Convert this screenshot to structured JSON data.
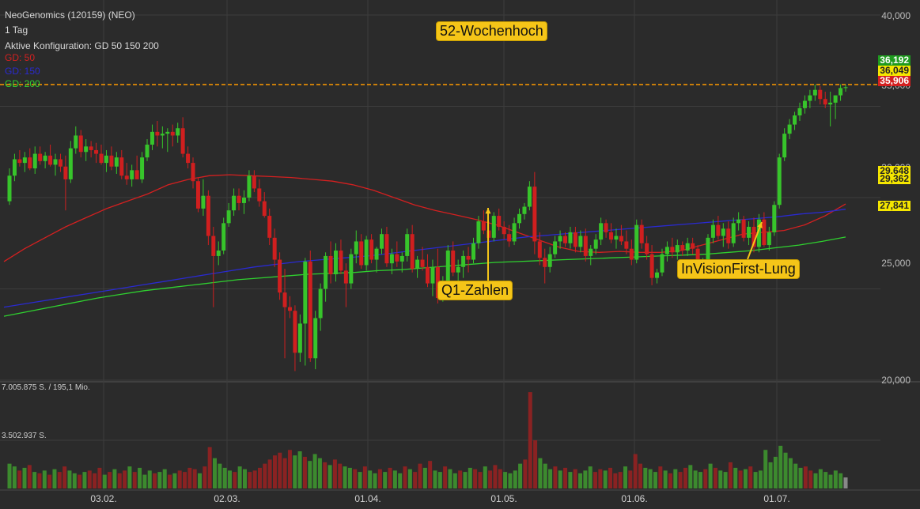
{
  "header": {
    "title": "NeoGenomics (120159) (NEO)",
    "interval": "1 Tag",
    "config": "Aktive Konfiguration: GD 50 150 200"
  },
  "legend": [
    {
      "label": "GD: 50",
      "color": "#d42020"
    },
    {
      "label": "GD: 150",
      "color": "#2a2ad0"
    },
    {
      "label": "GD: 200",
      "color": "#2fd12f"
    }
  ],
  "price_axis": {
    "ticks": [
      "40,000",
      "35,000",
      "30,000",
      "25,000",
      "20,000"
    ]
  },
  "volume_axis": {
    "labels": [
      "7.005.875 S. / 195,1 Mio.",
      "3.502.937 S."
    ]
  },
  "x_axis": {
    "labels": [
      "03.02.",
      "02.03.",
      "01.04.",
      "01.05.",
      "01.06.",
      "01.07."
    ]
  },
  "price_tags": [
    {
      "value": "36,192",
      "bg": "#1f9a1f",
      "fg": "#ffffff"
    },
    {
      "value": "36,049",
      "bg": "#f5e600",
      "fg": "#222222"
    },
    {
      "value": "35,906",
      "bg": "#d42020",
      "fg": "#ffffff"
    },
    {
      "value": "29,648",
      "bg": "#f5e600",
      "fg": "#222222"
    },
    {
      "value": "29,362",
      "bg": "#f5e600",
      "fg": "#222222"
    },
    {
      "value": "27,841",
      "bg": "#f5e600",
      "fg": "#222222"
    }
  ],
  "annotations": [
    {
      "text": "52-Wochenhoch"
    },
    {
      "text": "Q1-Zahlen"
    },
    {
      "text": "InVisionFirst-Lung"
    }
  ],
  "chart_data": {
    "type": "candlestick",
    "price_range": [
      20,
      40
    ],
    "high_52w": 36.192,
    "moving_averages": [
      {
        "name": "GD: 50",
        "color": "#d42020",
        "end_value": 29.648,
        "values": [
          26.5,
          27.2,
          27.8,
          28.4,
          28.9,
          29.4,
          29.8,
          30.2,
          30.7,
          31.0,
          31.2,
          31.25,
          31.2,
          31.15,
          31.1,
          31.0,
          30.9,
          30.7,
          30.4,
          30.0,
          29.6,
          29.3,
          29.05,
          28.8,
          28.5,
          28.1,
          27.7,
          27.3,
          27.05,
          27.0,
          27.05,
          27.0,
          27.0,
          27.1,
          27.4,
          27.7,
          28.0,
          28.1,
          28.2,
          28.5,
          29.0,
          29.648
        ]
      },
      {
        "name": "GD: 150",
        "color": "#2a2ad0",
        "end_value": 29.362,
        "values": [
          24.0,
          24.2,
          24.4,
          24.6,
          24.8,
          25.0,
          25.2,
          25.4,
          25.6,
          25.8,
          26.0,
          26.2,
          26.35,
          26.5,
          26.6,
          26.7,
          26.8,
          26.95,
          27.1,
          27.25,
          27.4,
          27.55,
          27.7,
          27.85,
          27.95,
          28.05,
          28.15,
          28.25,
          28.35,
          28.45,
          28.55,
          28.65,
          28.75,
          28.85,
          28.95,
          29.1,
          29.2,
          29.362
        ]
      },
      {
        "name": "GD: 200",
        "color": "#2fd12f",
        "end_value": 27.841,
        "values": [
          23.5,
          23.75,
          24.0,
          24.25,
          24.5,
          24.7,
          24.9,
          25.05,
          25.2,
          25.35,
          25.5,
          25.6,
          25.7,
          25.8,
          25.85,
          25.9,
          26.0,
          26.05,
          26.15,
          26.25,
          26.35,
          26.45,
          26.5,
          26.55,
          26.6,
          26.65,
          26.7,
          26.75,
          26.8,
          26.85,
          26.9,
          27.0,
          27.1,
          27.25,
          27.4,
          27.6,
          27.841
        ]
      }
    ],
    "candles": [
      [
        29.8,
        31.6,
        29.6,
        31.2
      ],
      [
        31.2,
        32.4,
        30.9,
        32.1
      ],
      [
        32.1,
        32.6,
        31.7,
        31.9
      ],
      [
        31.9,
        32.5,
        31.4,
        32.2
      ],
      [
        32.2,
        32.7,
        31.5,
        31.6
      ],
      [
        31.6,
        32.8,
        31.3,
        32.4
      ],
      [
        32.4,
        32.8,
        31.8,
        32.0
      ],
      [
        32.0,
        32.5,
        31.6,
        32.3
      ],
      [
        32.3,
        32.9,
        31.7,
        31.8
      ],
      [
        31.8,
        32.4,
        31.2,
        32.1
      ],
      [
        32.1,
        32.4,
        31.4,
        31.7
      ],
      [
        31.7,
        32.3,
        29.3,
        31.0
      ],
      [
        31.0,
        33.1,
        30.8,
        32.7
      ],
      [
        32.7,
        33.9,
        32.4,
        33.4
      ],
      [
        33.4,
        33.7,
        32.2,
        32.5
      ],
      [
        32.5,
        33.2,
        32.0,
        32.8
      ],
      [
        32.8,
        33.1,
        32.2,
        32.6
      ],
      [
        32.6,
        33.0,
        31.9,
        32.4
      ],
      [
        32.4,
        32.9,
        31.8,
        31.9
      ],
      [
        31.9,
        32.6,
        31.4,
        32.3
      ],
      [
        32.3,
        32.8,
        31.5,
        31.7
      ],
      [
        31.7,
        32.5,
        31.3,
        32.2
      ],
      [
        32.2,
        32.6,
        31.0,
        31.2
      ],
      [
        31.2,
        31.9,
        30.7,
        31.0
      ],
      [
        31.0,
        31.8,
        30.6,
        31.5
      ],
      [
        31.5,
        32.3,
        31.0,
        31.0
      ],
      [
        31.0,
        32.5,
        30.8,
        32.2
      ],
      [
        32.2,
        33.2,
        32.0,
        32.9
      ],
      [
        32.9,
        34.0,
        32.6,
        33.6
      ],
      [
        33.6,
        34.2,
        32.8,
        33.4
      ],
      [
        33.4,
        33.9,
        32.7,
        33.5
      ],
      [
        33.5,
        33.8,
        32.5,
        33.6
      ],
      [
        33.6,
        34.0,
        32.8,
        33.4
      ],
      [
        33.4,
        34.1,
        33.0,
        33.8
      ],
      [
        33.8,
        34.4,
        32.2,
        32.4
      ],
      [
        32.4,
        32.8,
        31.6,
        31.9
      ],
      [
        31.9,
        32.2,
        30.5,
        30.9
      ],
      [
        30.9,
        31.1,
        29.2,
        29.4
      ],
      [
        29.4,
        31.0,
        29.0,
        30.1
      ],
      [
        30.1,
        30.4,
        27.4,
        27.9
      ],
      [
        27.9,
        28.4,
        24.0,
        26.8
      ],
      [
        26.8,
        27.6,
        26.3,
        27.1
      ],
      [
        27.1,
        28.9,
        26.9,
        28.6
      ],
      [
        28.6,
        29.7,
        28.4,
        29.3
      ],
      [
        29.3,
        30.5,
        29.0,
        30.1
      ],
      [
        30.1,
        30.5,
        29.3,
        29.7
      ],
      [
        29.7,
        30.4,
        29.1,
        30.0
      ],
      [
        30.0,
        31.5,
        29.8,
        31.2
      ],
      [
        31.2,
        31.5,
        30.3,
        30.5
      ],
      [
        30.5,
        31.0,
        29.5,
        29.8
      ],
      [
        29.8,
        30.3,
        28.9,
        29.0
      ],
      [
        29.0,
        29.4,
        27.4,
        27.8
      ],
      [
        27.8,
        28.3,
        26.2,
        26.6
      ],
      [
        26.6,
        27.0,
        24.4,
        24.8
      ],
      [
        24.8,
        26.1,
        21.2,
        24.0
      ],
      [
        24.0,
        24.6,
        23.4,
        23.8
      ],
      [
        23.8,
        24.1,
        20.5,
        21.5
      ],
      [
        21.5,
        23.6,
        21.0,
        23.1
      ],
      [
        23.1,
        26.7,
        20.8,
        26.5
      ],
      [
        26.5,
        27.1,
        21.0,
        21.2
      ],
      [
        21.2,
        23.8,
        20.6,
        23.4
      ],
      [
        23.4,
        25.3,
        22.7,
        25.0
      ],
      [
        25.0,
        27.0,
        24.3,
        26.8
      ],
      [
        26.8,
        27.6,
        25.3,
        25.8
      ],
      [
        25.8,
        27.5,
        25.4,
        27.1
      ],
      [
        27.1,
        27.7,
        25.8,
        26.0
      ],
      [
        26.0,
        26.4,
        24.0,
        25.3
      ],
      [
        25.3,
        27.2,
        25.0,
        26.9
      ],
      [
        26.9,
        28.2,
        26.4,
        27.6
      ],
      [
        27.6,
        28.0,
        26.1,
        26.3
      ],
      [
        26.3,
        27.9,
        26.0,
        27.7
      ],
      [
        27.7,
        28.0,
        26.4,
        26.6
      ],
      [
        26.6,
        27.3,
        25.9,
        27.2
      ],
      [
        27.2,
        28.3,
        26.9,
        28.0
      ],
      [
        28.0,
        28.4,
        26.2,
        26.4
      ],
      [
        26.4,
        27.2,
        25.8,
        26.9
      ],
      [
        26.9,
        27.6,
        26.2,
        26.5
      ],
      [
        26.5,
        27.0,
        25.9,
        26.8
      ],
      [
        26.8,
        28.3,
        26.5,
        28.0
      ],
      [
        28.0,
        28.5,
        25.9,
        26.1
      ],
      [
        26.1,
        26.8,
        25.6,
        26.6
      ],
      [
        26.6,
        27.3,
        26.0,
        26.2
      ],
      [
        26.2,
        26.9,
        25.1,
        25.3
      ],
      [
        25.3,
        26.6,
        24.6,
        26.2
      ],
      [
        26.2,
        27.2,
        24.2,
        24.5
      ],
      [
        24.5,
        25.7,
        24.3,
        25.3
      ],
      [
        25.3,
        27.4,
        25.0,
        27.1
      ],
      [
        27.1,
        27.6,
        25.7,
        25.9
      ],
      [
        25.9,
        26.6,
        25.3,
        26.2
      ],
      [
        26.2,
        27.1,
        25.6,
        26.8
      ],
      [
        26.8,
        27.3,
        25.9,
        26.6
      ],
      [
        26.6,
        27.8,
        26.4,
        27.5
      ],
      [
        27.5,
        29.0,
        27.2,
        28.7
      ],
      [
        28.7,
        29.3,
        28.0,
        28.2
      ],
      [
        28.2,
        28.7,
        27.5,
        27.8
      ],
      [
        27.8,
        29.2,
        27.6,
        29.0
      ],
      [
        29.0,
        29.4,
        28.2,
        28.4
      ],
      [
        28.4,
        28.7,
        27.7,
        28.0
      ],
      [
        28.0,
        28.5,
        27.3,
        27.6
      ],
      [
        27.6,
        28.9,
        27.4,
        28.6
      ],
      [
        28.6,
        29.4,
        28.3,
        29.1
      ],
      [
        29.1,
        29.7,
        28.8,
        29.5
      ],
      [
        29.5,
        30.9,
        29.3,
        30.6
      ],
      [
        30.6,
        31.4,
        26.9,
        27.6
      ],
      [
        27.6,
        28.1,
        26.3,
        26.7
      ],
      [
        26.7,
        27.2,
        25.3,
        26.2
      ],
      [
        26.2,
        27.3,
        25.9,
        26.9
      ],
      [
        26.9,
        27.9,
        26.7,
        27.6
      ],
      [
        27.6,
        28.2,
        27.2,
        27.9
      ],
      [
        27.9,
        28.1,
        27.3,
        27.5
      ],
      [
        27.5,
        28.4,
        27.2,
        28.1
      ],
      [
        28.1,
        28.4,
        27.0,
        27.3
      ],
      [
        27.3,
        28.2,
        27.0,
        27.9
      ],
      [
        27.9,
        28.3,
        26.5,
        26.8
      ],
      [
        26.8,
        27.4,
        26.3,
        27.2
      ],
      [
        27.2,
        28.0,
        26.9,
        27.7
      ],
      [
        27.7,
        28.9,
        27.4,
        28.6
      ],
      [
        28.6,
        28.8,
        27.8,
        28.1
      ],
      [
        28.1,
        28.6,
        27.5,
        27.7
      ],
      [
        27.7,
        28.3,
        27.2,
        27.9
      ],
      [
        27.9,
        28.5,
        27.4,
        27.6
      ],
      [
        27.6,
        28.2,
        26.9,
        27.2
      ],
      [
        27.2,
        27.7,
        26.3,
        26.6
      ],
      [
        26.6,
        28.8,
        26.4,
        28.5
      ],
      [
        28.5,
        28.8,
        27.2,
        27.5
      ],
      [
        27.5,
        27.9,
        26.6,
        26.9
      ],
      [
        26.9,
        27.4,
        25.2,
        25.6
      ],
      [
        25.6,
        26.1,
        25.3,
        25.9
      ],
      [
        25.9,
        27.2,
        25.7,
        26.9
      ],
      [
        26.9,
        27.6,
        26.5,
        27.3
      ],
      [
        27.3,
        27.8,
        26.7,
        27.0
      ],
      [
        27.0,
        27.7,
        26.6,
        27.4
      ],
      [
        27.4,
        27.6,
        26.8,
        27.1
      ],
      [
        27.1,
        27.8,
        26.8,
        27.5
      ],
      [
        27.5,
        27.8,
        26.9,
        27.2
      ],
      [
        27.2,
        27.4,
        25.8,
        26.1
      ],
      [
        26.1,
        26.7,
        25.9,
        26.4
      ],
      [
        26.4,
        28.0,
        26.2,
        27.8
      ],
      [
        27.8,
        28.8,
        27.5,
        28.5
      ],
      [
        28.5,
        29.0,
        27.7,
        27.9
      ],
      [
        27.9,
        28.6,
        27.3,
        28.3
      ],
      [
        28.3,
        28.7,
        27.2,
        27.5
      ],
      [
        27.5,
        28.9,
        27.3,
        28.6
      ],
      [
        28.6,
        29.2,
        28.2,
        28.8
      ],
      [
        28.8,
        29.0,
        27.6,
        27.8
      ],
      [
        27.8,
        28.7,
        27.4,
        28.4
      ],
      [
        28.4,
        28.9,
        27.0,
        27.3
      ],
      [
        27.3,
        29.1,
        27.0,
        28.8
      ],
      [
        28.8,
        29.2,
        27.3,
        27.4
      ],
      [
        27.4,
        28.4,
        27.1,
        28.1
      ],
      [
        28.1,
        29.8,
        27.9,
        29.6
      ],
      [
        29.6,
        32.4,
        29.4,
        32.2
      ],
      [
        32.2,
        33.8,
        32.0,
        33.5
      ],
      [
        33.5,
        34.3,
        33.2,
        34.0
      ],
      [
        34.0,
        34.7,
        33.7,
        34.5
      ],
      [
        34.5,
        35.2,
        34.2,
        34.9
      ],
      [
        34.9,
        35.6,
        34.6,
        35.3
      ],
      [
        35.3,
        35.9,
        34.9,
        35.6
      ],
      [
        35.6,
        36.2,
        35.3,
        35.9
      ],
      [
        35.9,
        36.1,
        35.1,
        35.4
      ],
      [
        35.4,
        35.8,
        34.9,
        35.1
      ],
      [
        35.1,
        35.8,
        33.9,
        35.2
      ],
      [
        35.2,
        35.6,
        34.3,
        35.6
      ],
      [
        35.6,
        36.2,
        35.3,
        36.0
      ],
      [
        36.0,
        36.19,
        35.8,
        36.049
      ]
    ],
    "volume": {
      "max_label": "7.005.875 S. / 195,1 Mio.",
      "mid_label": "3.502.937 S.",
      "max": 7005875,
      "values": [
        1.8,
        1.6,
        1.3,
        1.5,
        1.7,
        1.2,
        1.1,
        1.3,
        1.0,
        1.4,
        1.2,
        1.6,
        1.3,
        1.1,
        1.0,
        1.2,
        1.3,
        1.1,
        1.5,
        1.0,
        1.2,
        1.4,
        1.1,
        1.3,
        1.6,
        1.2,
        1.5,
        1.0,
        1.3,
        1.1,
        1.2,
        1.4,
        1.0,
        1.1,
        1.3,
        1.2,
        1.5,
        1.4,
        1.1,
        1.6,
        3.0,
        2.2,
        1.8,
        1.5,
        1.3,
        1.2,
        1.6,
        1.4,
        1.2,
        1.3,
        1.5,
        1.8,
        2.1,
        2.4,
        2.6,
        2.2,
        2.8,
        2.4,
        2.7,
        2.3,
        2.0,
        2.5,
        2.2,
        1.9,
        1.7,
        2.1,
        1.8,
        1.6,
        1.5,
        1.4,
        1.2,
        1.6,
        1.3,
        1.1,
        1.4,
        1.2,
        1.5,
        1.3,
        1.1,
        1.6,
        1.4,
        1.2,
        1.8,
        1.5,
        2.0,
        1.3,
        1.2,
        1.6,
        1.4,
        1.1,
        1.3,
        1.2,
        1.5,
        1.4,
        1.2,
        1.6,
        1.3,
        1.7,
        1.4,
        1.2,
        1.1,
        1.3,
        1.8,
        2.1,
        7.0,
        3.5,
        2.2,
        1.8,
        1.4,
        1.6,
        1.3,
        1.5,
        1.2,
        1.4,
        1.1,
        1.3,
        1.6,
        1.2,
        1.4,
        1.3,
        1.5,
        1.1,
        1.2,
        1.6,
        1.3,
        2.5,
        1.8,
        1.5,
        1.4,
        1.2,
        1.6,
        1.3,
        1.1,
        1.4,
        1.2,
        1.5,
        1.7,
        1.3,
        1.2,
        1.4,
        1.8,
        1.5,
        1.3,
        1.2,
        1.9,
        1.5,
        1.3,
        1.4,
        1.6,
        1.2,
        1.3,
        2.8,
        1.9,
        2.3,
        3.1,
        2.6,
        2.2,
        1.8,
        1.5,
        1.6,
        1.3,
        1.1,
        1.4,
        1.2,
        1.0,
        1.3,
        1.1,
        0.8
      ]
    }
  }
}
